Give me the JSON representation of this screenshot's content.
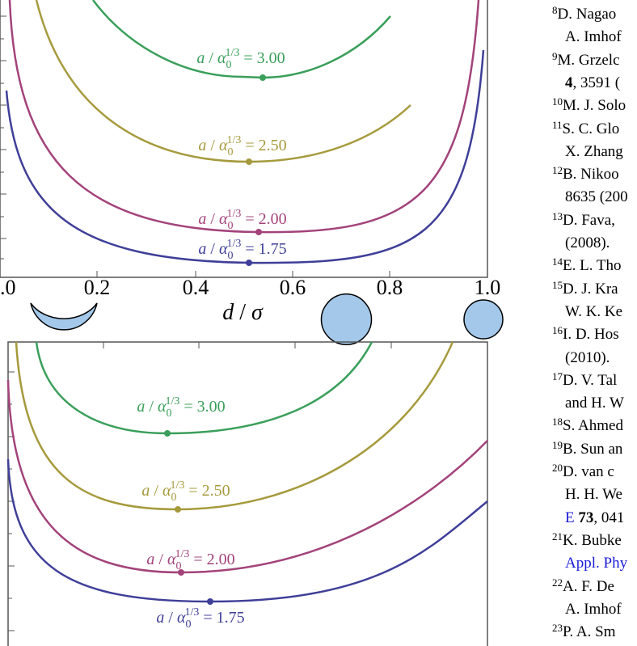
{
  "figure": {
    "top_panel": {
      "xticks": [
        ".0",
        "0.2",
        "0.4",
        "0.6",
        "0.8",
        "1.0"
      ],
      "xlabel": {
        "var": "d",
        "sep": " / ",
        "sigma": "σ"
      },
      "curve_labels": [
        {
          "var": "a",
          "sep": " / ",
          "alpha": "α",
          "sub": "0",
          "sup": "1/3",
          "value": " = 3.00"
        },
        {
          "var": "a",
          "sep": " / ",
          "alpha": "α",
          "sub": "0",
          "sup": "1/3",
          "value": " = 2.50"
        },
        {
          "var": "a",
          "sep": " / ",
          "alpha": "α",
          "sub": "0",
          "sup": "1/3",
          "value": " = 2.00"
        },
        {
          "var": "a",
          "sep": " / ",
          "alpha": "α",
          "sub": "0",
          "sup": "1/3",
          "value": " = 1.75"
        }
      ]
    },
    "bottom_panel": {
      "curve_labels": [
        {
          "var": "a",
          "sep": " / ",
          "alpha": "α",
          "sub": "0",
          "sup": "1/3",
          "value": " = 3.00"
        },
        {
          "var": "a",
          "sep": " / ",
          "alpha": "α",
          "sub": "0",
          "sup": "1/3",
          "value": " = 2.50"
        },
        {
          "var": "a",
          "sep": " / ",
          "alpha": "α",
          "sub": "0",
          "sup": "1/3",
          "value": " = 2.00"
        },
        {
          "var": "a",
          "sep": " / ",
          "alpha": "α",
          "sub": "0",
          "sup": "1/3",
          "value": " = 1.75"
        }
      ]
    }
  },
  "references": [
    {
      "number": "8",
      "lines": [
        "D.  Nagao",
        "A. Imhof"
      ]
    },
    {
      "number": "9",
      "lines": [
        "M. Grzelc",
        [
          "4",
          ", 3591 ("
        ]
      ]
    },
    {
      "number": "10",
      "lines": [
        "M. J. Solo"
      ]
    },
    {
      "number": "11",
      "lines": [
        "S. C. Glo",
        "X. Zhang"
      ]
    },
    {
      "number": "12",
      "lines": [
        "B. Nikoo",
        "8635 (200"
      ]
    },
    {
      "number": "13",
      "lines": [
        "D. Fava, ",
        "(2008)."
      ]
    },
    {
      "number": "14",
      "lines": [
        "E. L. Tho"
      ]
    },
    {
      "number": "15",
      "lines": [
        "D. J. Kra",
        "W. K. Ke"
      ]
    },
    {
      "number": "16",
      "lines": [
        "I. D. Hos",
        "(2010)."
      ]
    },
    {
      "number": "17",
      "lines": [
        "D. V. Tal",
        "and H. W"
      ]
    },
    {
      "number": "18",
      "lines": [
        "S. Ahmed"
      ]
    },
    {
      "number": "19",
      "lines": [
        "B. Sun an"
      ]
    },
    {
      "number": "20",
      "lines": [
        "D.  van  c",
        "H. H. We",
        [
          "E",
          " 73",
          ", 041"
        ]
      ]
    },
    {
      "number": "21",
      "lines": [
        "K. Bubke",
        "Appl. Phy"
      ]
    },
    {
      "number": "22",
      "lines": [
        "A. F. De",
        "A. Imhof"
      ]
    },
    {
      "number": "23",
      "lines": [
        "P. A. Sm"
      ]
    }
  ]
}
